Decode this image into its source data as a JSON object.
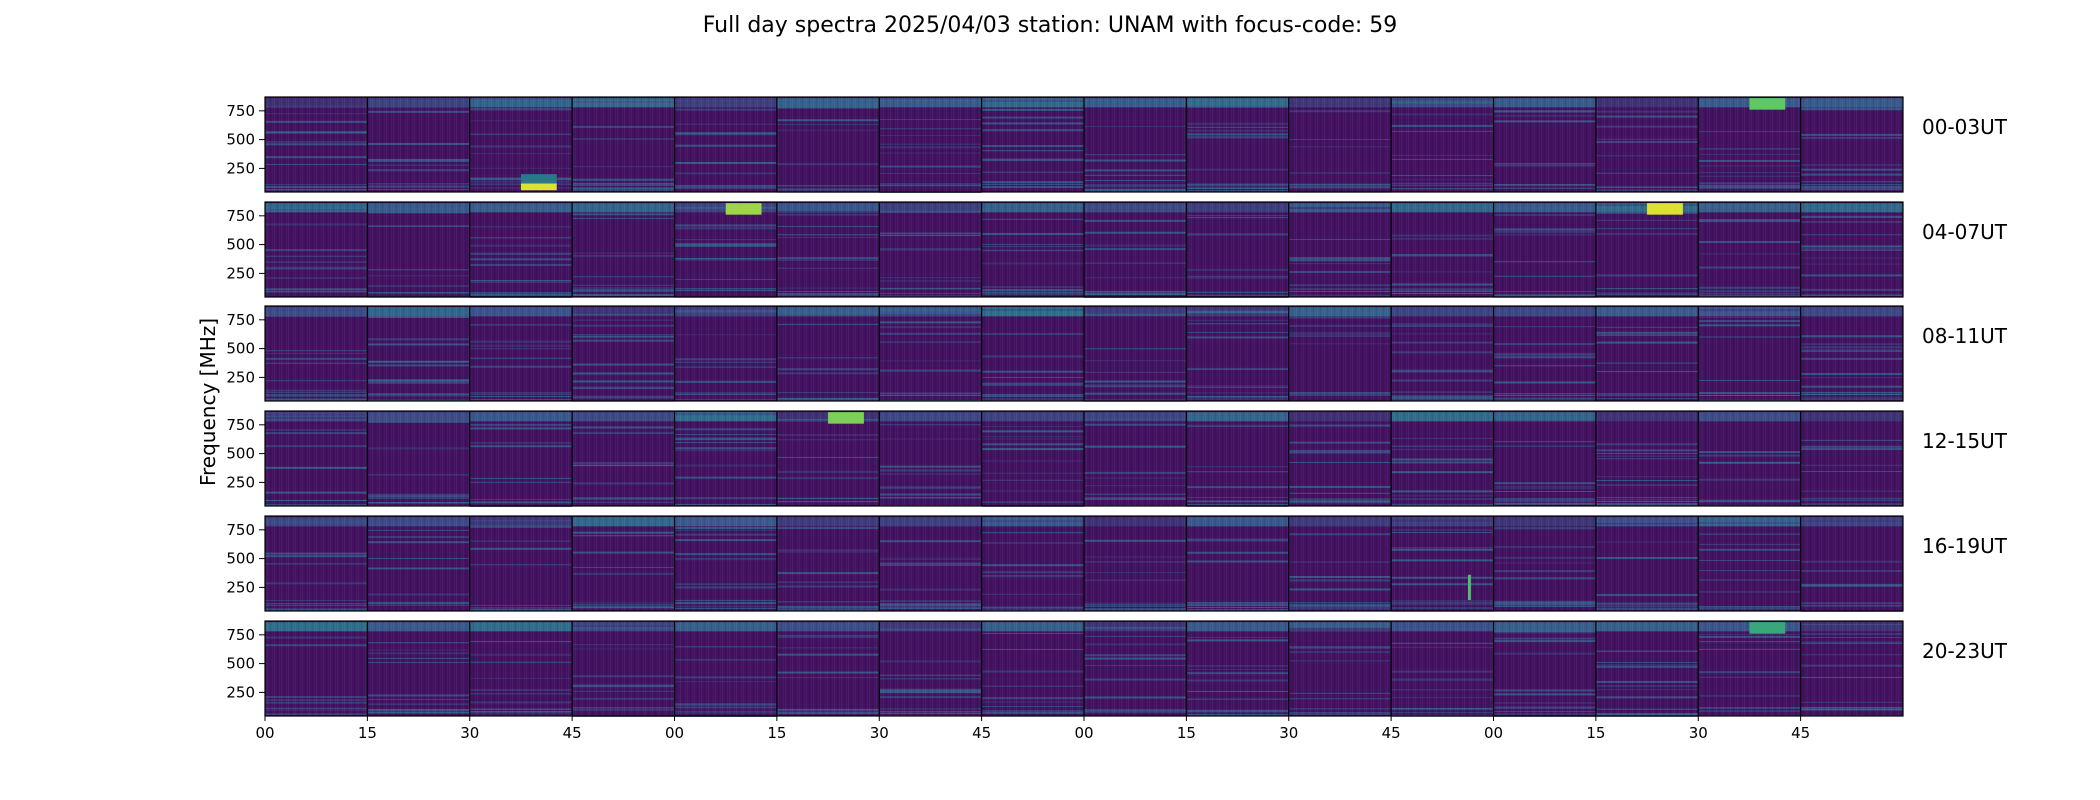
{
  "chart_data": {
    "type": "heatmap",
    "title": "Full day spectra 2025/04/03 station: UNAM with focus-code: 59",
    "ylabel": "Frequency [MHz]",
    "xlabel": "",
    "ylim": [
      45,
      870
    ],
    "y_ticks": [
      250,
      500,
      750
    ],
    "y_tick_labels": [
      "250",
      "500",
      "750"
    ],
    "x_tick_labels": [
      "00",
      "15",
      "30",
      "45",
      "00",
      "15",
      "30",
      "45",
      "00",
      "15",
      "30",
      "45",
      "00",
      "15",
      "30",
      "45"
    ],
    "row_labels": [
      "00-03UT",
      "04-07UT",
      "08-11UT",
      "12-15UT",
      "16-19UT",
      "20-23UT"
    ],
    "panels_per_row": 16,
    "panel_minutes": 15,
    "colormap": [
      "#440154",
      "#3b528b",
      "#21918c",
      "#5ec962",
      "#fde725"
    ],
    "background_level": 0.05,
    "hotspots": [
      {
        "row": 0,
        "panel": 2,
        "freq_range": [
          60,
          120
        ],
        "level": 0.95,
        "note": "bright low-frequency burst"
      },
      {
        "row": 0,
        "panel": 2,
        "freq_range": [
          120,
          200
        ],
        "level": 0.4
      },
      {
        "row": 0,
        "panel": 14,
        "freq_range": [
          760,
          860
        ],
        "level": 0.75
      },
      {
        "row": 1,
        "panel": 13,
        "freq_range": [
          760,
          860
        ],
        "level": 0.95
      },
      {
        "row": 1,
        "panel": 4,
        "freq_range": [
          760,
          860
        ],
        "level": 0.85
      },
      {
        "row": 3,
        "panel": 5,
        "freq_range": [
          760,
          860
        ],
        "level": 0.8
      },
      {
        "row": 4,
        "panel": 11,
        "freq_range": [
          140,
          360
        ],
        "level": 0.7,
        "note": "narrow vertical transient"
      },
      {
        "row": 5,
        "panel": 14,
        "freq_range": [
          760,
          860
        ],
        "level": 0.6
      }
    ]
  }
}
